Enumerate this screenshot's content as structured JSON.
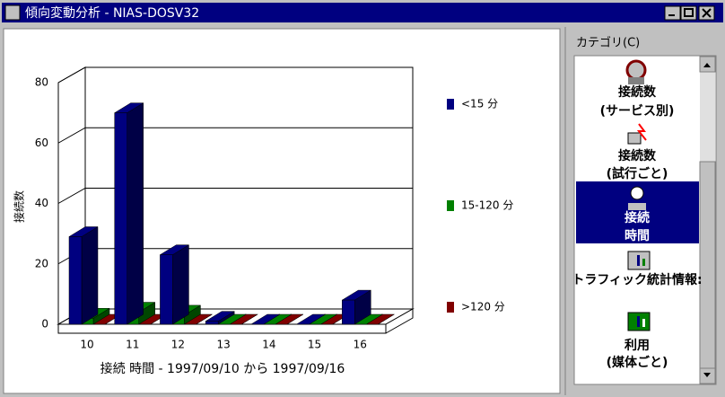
{
  "window": {
    "title": "傾向変動分析 - NIAS-DOSV32"
  },
  "chart_data": {
    "type": "bar3d",
    "x_label": "接続 時間 - 1997/09/10 から 1997/09/16",
    "y_label": "接続数",
    "categories": [
      "10",
      "11",
      "12",
      "13",
      "14",
      "15",
      "16"
    ],
    "series": [
      {
        "name": "<15 分",
        "color": "#000080",
        "values": [
          29,
          70,
          23,
          1,
          0,
          0,
          8
        ]
      },
      {
        "name": "15-120 分",
        "color": "#008000",
        "values": [
          2,
          4,
          3,
          0,
          0,
          0,
          0
        ]
      },
      {
        "name": ">120 分",
        "color": "#800000",
        "values": [
          0,
          0,
          0,
          0,
          0,
          0,
          0
        ]
      }
    ],
    "ylim": [
      0,
      80
    ],
    "yticks": [
      0,
      20,
      40,
      60,
      80
    ],
    "grid": true,
    "legend": "right"
  },
  "sidebar": {
    "label": "カテゴリ(C)",
    "items": [
      {
        "lines": [
          "接続数",
          "(サービス別)"
        ]
      },
      {
        "lines": [
          "接続数",
          "(試行ごと)"
        ]
      },
      {
        "lines": [
          "接続",
          "時間"
        ]
      },
      {
        "lines": [
          "トラフィック統計情報:"
        ]
      },
      {
        "lines": [
          "利用",
          "(媒体ごと)"
        ]
      }
    ]
  }
}
